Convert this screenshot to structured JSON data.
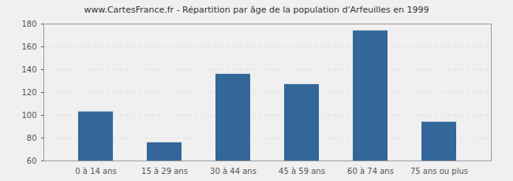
{
  "chart_data": {
    "type": "bar",
    "title": "www.CartesFrance.fr - Répartition par âge de la population d'Arfeuilles en 1999",
    "categories": [
      "0 à 14 ans",
      "15 à 29 ans",
      "30 à 44 ans",
      "45 à 59 ans",
      "60 à 74 ans",
      "75 ans ou plus"
    ],
    "values": [
      103,
      76,
      136,
      127,
      174,
      94
    ],
    "color": "#336699",
    "ylim": [
      60,
      180
    ],
    "yticks": [
      60,
      80,
      100,
      120,
      140,
      160,
      180
    ],
    "grid": true
  }
}
